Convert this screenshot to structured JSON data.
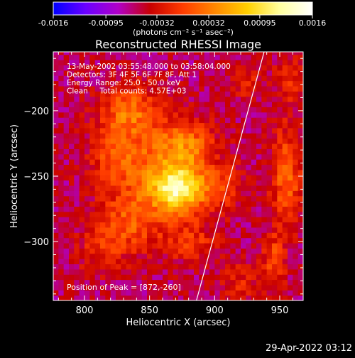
{
  "colorbar": {
    "ticks": [
      "-0.0016",
      "-0.00095",
      "-0.00032",
      "0.00032",
      "0.00095",
      "0.0016"
    ],
    "tick_values": [
      -0.0016,
      -0.00095,
      -0.00032,
      0.00032,
      0.00095,
      0.0016
    ],
    "unit_label": "(photons cm⁻² s⁻¹ asec⁻²)",
    "colormap": [
      "#0000ff",
      "#6a00ff",
      "#b000c8",
      "#c80000",
      "#ff3c00",
      "#ff8800",
      "#ffd000",
      "#ffffa0",
      "#ffffff"
    ]
  },
  "chart_data": {
    "type": "heatmap",
    "title": "Reconstructed RHESSI Image",
    "xlabel": "Heliocentric X (arcsec)",
    "ylabel": "Heliocentric Y (arcsec)",
    "xlim": [
      776,
      968
    ],
    "ylim": [
      -345,
      -155
    ],
    "xticks": [
      800,
      850,
      900,
      950
    ],
    "yticks": [
      -200,
      -250,
      -300
    ],
    "info_lines": [
      "13-May-2002 03:55:48.000 to 03:58:04.000",
      "Detectors: 3F 4F 5F 6F 7F 8F, Att 1",
      "Energy Range: 25.0 - 50.0 keV",
      "Clean     Total counts: 4.57E+03"
    ],
    "peak_text": "Position of Peak = [872,-260]",
    "peak": {
      "x": 872,
      "y": -260,
      "value": 0.0016
    },
    "limb_line": [
      [
        886,
        -345
      ],
      [
        938,
        -155
      ]
    ],
    "emission_blobs": [
      {
        "x": 872,
        "y": -260,
        "sx": 14,
        "sy": 12,
        "amp": 0.0014
      },
      {
        "x": 862,
        "y": -245,
        "sx": 24,
        "sy": 24,
        "amp": 0.00065
      },
      {
        "x": 835,
        "y": -200,
        "sx": 16,
        "sy": 14,
        "amp": 0.00075
      },
      {
        "x": 825,
        "y": -235,
        "sx": 14,
        "sy": 16,
        "amp": 0.00055
      },
      {
        "x": 878,
        "y": -225,
        "sx": 14,
        "sy": 12,
        "amp": 0.0006
      },
      {
        "x": 835,
        "y": -285,
        "sx": 16,
        "sy": 16,
        "amp": 0.0006
      },
      {
        "x": 812,
        "y": -305,
        "sx": 12,
        "sy": 12,
        "amp": 0.0004
      },
      {
        "x": 905,
        "y": -258,
        "sx": 10,
        "sy": 12,
        "amp": 0.00045
      },
      {
        "x": 880,
        "y": -300,
        "sx": 14,
        "sy": 10,
        "amp": 0.00045
      },
      {
        "x": 920,
        "y": -330,
        "sx": 10,
        "sy": 10,
        "amp": 0.00035
      },
      {
        "x": 955,
        "y": -250,
        "sx": 8,
        "sy": 26,
        "amp": 0.00075
      },
      {
        "x": 945,
        "y": -315,
        "sx": 6,
        "sy": 16,
        "amp": 0.00055
      },
      {
        "x": 958,
        "y": -175,
        "sx": 8,
        "sy": 12,
        "amp": 0.00045
      },
      {
        "x": 925,
        "y": -180,
        "sx": 8,
        "sy": 8,
        "amp": 0.00035
      }
    ],
    "background_level": -0.00055,
    "grid": false
  },
  "footer": {
    "timestamp": "29-Apr-2022 03:12"
  }
}
